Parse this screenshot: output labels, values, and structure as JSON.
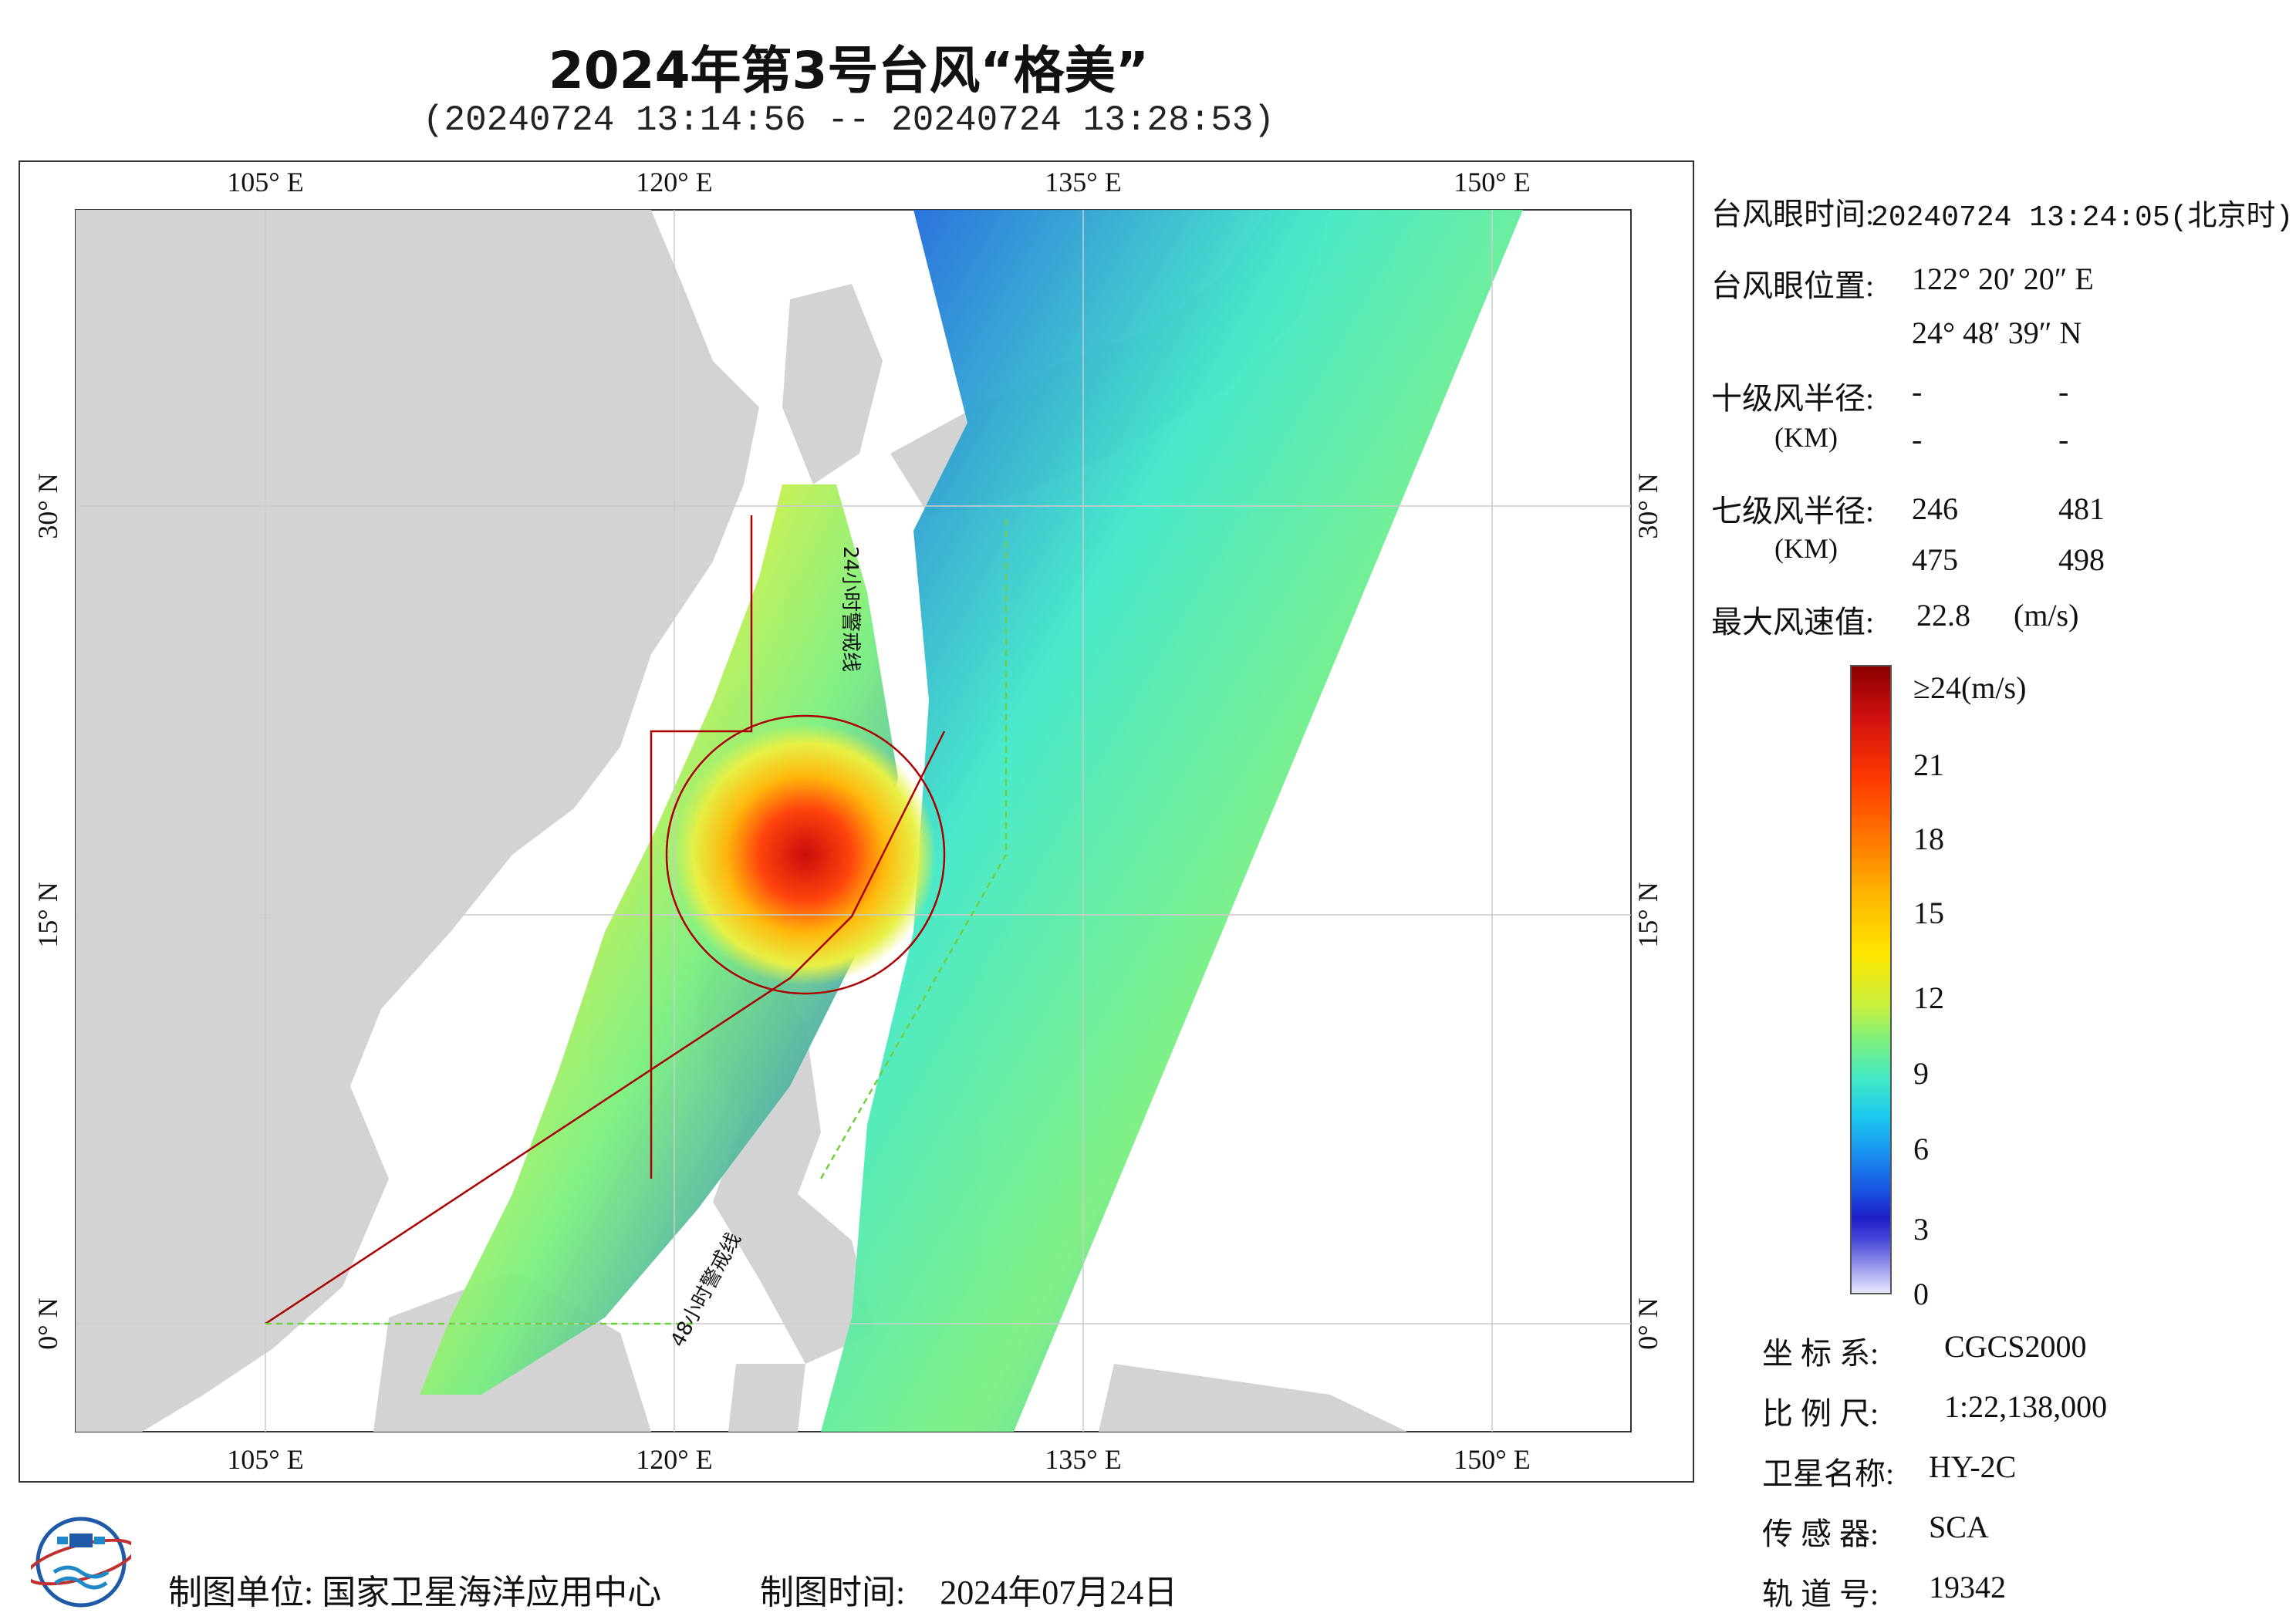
{
  "title": "2024年第3号台风“格美”",
  "subtitle": "(20240724 13:14:56 -- 20240724 13:28:53)",
  "map": {
    "top_lon_labels": [
      "105° E",
      "120° E",
      "135° E",
      "150° E"
    ],
    "bottom_lon_labels": [
      "105° E",
      "120° E",
      "135° E",
      "150° E"
    ],
    "left_lat_labels": [
      "30° N",
      "15° N",
      "0° N"
    ],
    "right_lat_labels": [
      "30° N",
      "15° N",
      "0° N"
    ],
    "track_label_1": "24小时警戒线",
    "track_label_2": "48小时警戒线",
    "colors": {
      "land": "#d3d3d3",
      "sea": "#ffffff",
      "track": "#aa0000",
      "warning_green": "#6fcf3f"
    }
  },
  "info": {
    "eye_time_label": "台风眼时间:",
    "eye_time_value": "20240724 13:24:05(北京时)",
    "eye_pos_label": "台风眼位置:",
    "eye_lon": "122° 20′ 20″ E",
    "eye_lat": "24° 48′ 39″ N",
    "r10_label": "十级风半径:",
    "r10_unit": "(KM)",
    "r10_values": [
      "-",
      "-",
      "-",
      "-"
    ],
    "r7_label": "七级风半径:",
    "r7_unit": "(KM)",
    "r7_values": [
      "246",
      "481",
      "475",
      "498"
    ],
    "max_wind_label": "最大风速值:",
    "max_wind_value": "22.8",
    "max_wind_unit": "(m/s)"
  },
  "colorbar": {
    "labels": [
      "≥24(m/s)",
      "21",
      "18",
      "15",
      "12",
      "9",
      "6",
      "3",
      "0"
    ]
  },
  "meta": {
    "crs_label": "坐 标 系:",
    "crs_value": "CGCS2000",
    "scale_label": "比 例 尺:",
    "scale_value": "1:22,138,000",
    "sat_label": "卫星名称:",
    "sat_value": "HY-2C",
    "sensor_label": "传 感 器:",
    "sensor_value": "SCA",
    "orbit_label": "轨 道 号:",
    "orbit_value": "19342"
  },
  "footer": {
    "unit_label": "制图单位:",
    "unit_value": "国家卫星海洋应用中心",
    "time_label": "制图时间:",
    "time_value": "2024年07月24日"
  }
}
